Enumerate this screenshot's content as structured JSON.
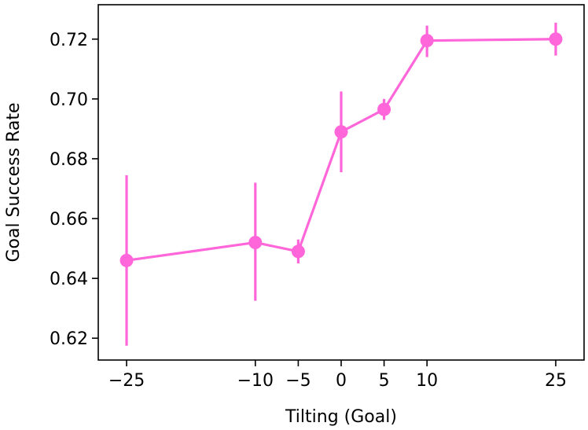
{
  "chart_data": {
    "type": "line",
    "xlabel": "Tilting (Goal)",
    "ylabel": "Goal Success Rate",
    "xlim": [
      -28.3,
      28.3
    ],
    "ylim": [
      0.6127,
      0.7315
    ],
    "x_ticks": [
      -25,
      -10,
      -5,
      0,
      5,
      10,
      25
    ],
    "x_tick_labels": [
      "−25",
      "−10",
      "−5",
      "0",
      "5",
      "10",
      "25"
    ],
    "y_ticks": [
      0.62,
      0.64,
      0.66,
      0.68,
      0.7,
      0.72
    ],
    "y_tick_labels": [
      "0.62",
      "0.64",
      "0.66",
      "0.68",
      "0.70",
      "0.72"
    ],
    "grid": false,
    "color": "#ff66d9",
    "series": [
      {
        "x": [
          -25,
          -10,
          -5,
          0,
          5,
          10,
          25
        ],
        "y": [
          0.646,
          0.652,
          0.649,
          0.689,
          0.6965,
          0.7195,
          0.72
        ],
        "err_low": [
          0.6175,
          0.6325,
          0.645,
          0.6755,
          0.693,
          0.714,
          0.7145
        ],
        "err_high": [
          0.6745,
          0.672,
          0.653,
          0.7025,
          0.7,
          0.7245,
          0.7255
        ]
      }
    ]
  }
}
